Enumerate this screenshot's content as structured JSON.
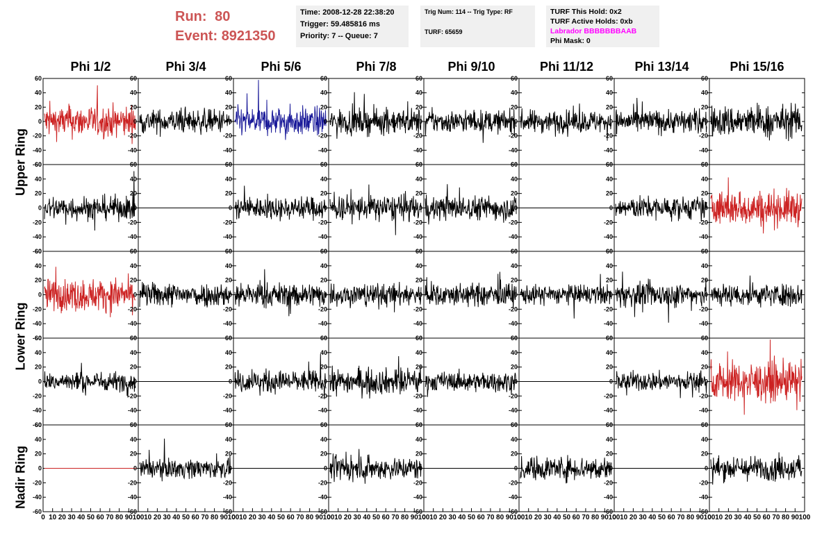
{
  "header": {
    "run_label": "Run:",
    "run_value": "80",
    "event_label": "Event:",
    "event_value": "8921350",
    "time": "Time: 2008-12-28 22:38:20",
    "trigger": "Trigger: 59.485816 ms",
    "priority": "Priority: 7 -- Queue: 7",
    "trig_num": "Trig Num: 114 -- Trig Type: RF",
    "turf": "TURF: 65659",
    "turf_hold": "TURF This Hold: 0x2",
    "turf_active": "TURF Active Holds: 0xb",
    "labrador": "Labrador BBBBBBBAAB",
    "phi_mask": "Phi Mask: 0"
  },
  "columns": [
    "Phi 1/2",
    "Phi 3/4",
    "Phi 5/6",
    "Phi 7/8",
    "Phi 9/10",
    "Phi 11/12",
    "Phi 13/14",
    "Phi 15/16"
  ],
  "ring_labels": [
    "Upper Ring",
    "Lower Ring",
    "Nadir Ring"
  ],
  "chart_data": {
    "type": "line",
    "grid": "8 columns x 5 rows of waveform panels",
    "xlim": [
      0,
      100
    ],
    "ylim": [
      -60,
      60
    ],
    "x_ticks": [
      "0",
      "10",
      "20",
      "30",
      "40",
      "50",
      "60",
      "70",
      "80",
      "90",
      "100"
    ],
    "y_ticks": [
      "60",
      "40",
      "20",
      "0",
      "-20",
      "-40",
      "-60"
    ],
    "colors": {
      "normal": "#000000",
      "triggered": "#cc2222",
      "blue": "#1a1a99"
    },
    "panels": [
      [
        "red",
        "black",
        "blue",
        "black",
        "black",
        "black",
        "black",
        "black"
      ],
      [
        "black",
        "flat",
        "black",
        "black",
        "black",
        "flat",
        "black",
        "red"
      ],
      [
        "red",
        "black",
        "black",
        "black",
        "black",
        "black",
        "black",
        "black"
      ],
      [
        "black",
        "flat",
        "black",
        "black",
        "black",
        "flat",
        "black",
        "red"
      ],
      [
        "flat-red",
        "black",
        "flat",
        "black",
        "flat",
        "black",
        "flat",
        "black"
      ]
    ],
    "amplitudes": [
      [
        20,
        15,
        18,
        16,
        14,
        14,
        15,
        20
      ],
      [
        15,
        0,
        14,
        16,
        15,
        0,
        14,
        22
      ],
      [
        20,
        15,
        15,
        14,
        14,
        12,
        15,
        14
      ],
      [
        12,
        0,
        14,
        16,
        12,
        0,
        12,
        24
      ],
      [
        0,
        12,
        0,
        14,
        0,
        15,
        0,
        15
      ]
    ]
  }
}
